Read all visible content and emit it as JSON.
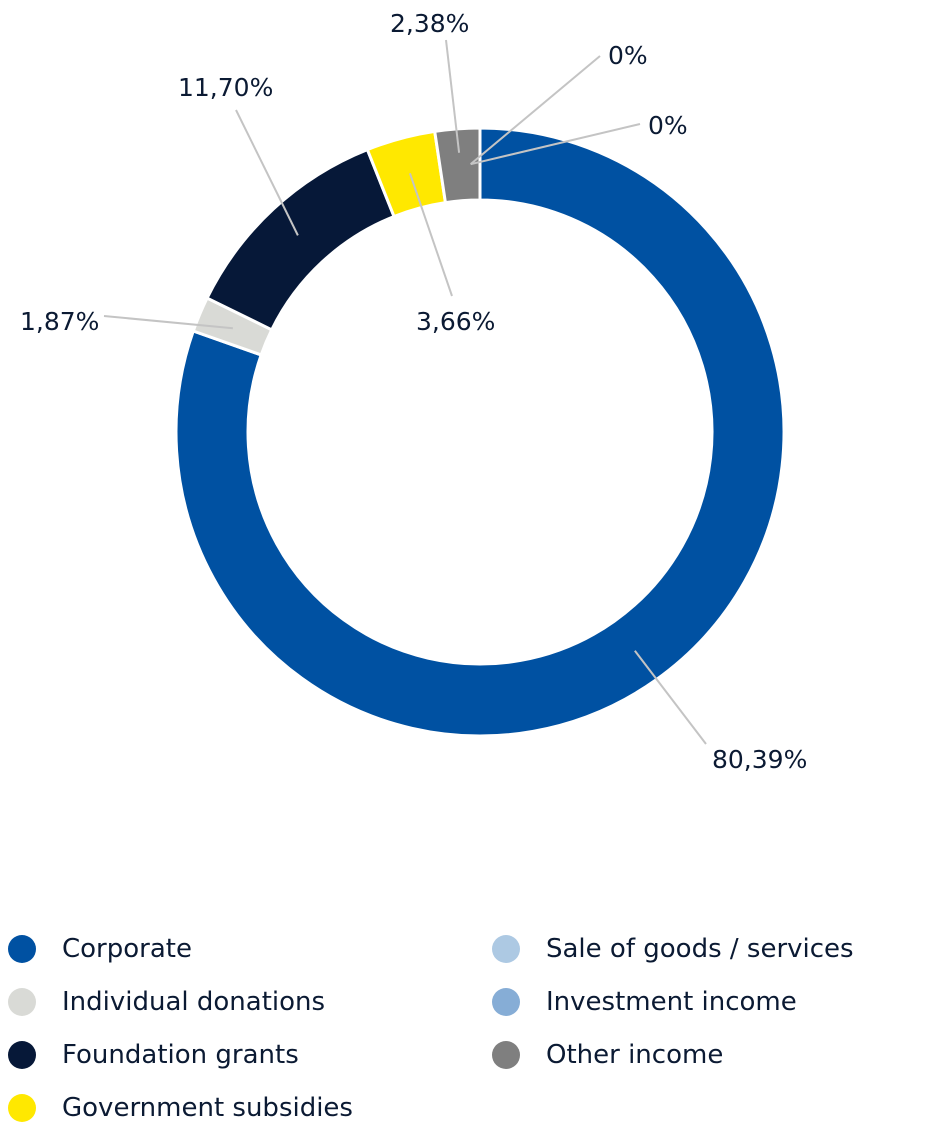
{
  "chart_data": {
    "type": "pie",
    "variant": "donut",
    "title": "",
    "start_angle_deg": 0,
    "direction": "clockwise",
    "legend_position": "bottom",
    "series": [
      {
        "name": "Corporate",
        "value": 80.39,
        "label": "80,39%",
        "color": "#0051a2"
      },
      {
        "name": "Individual donations",
        "value": 1.87,
        "label": "1,87%",
        "color": "#d9dad6"
      },
      {
        "name": "Foundation grants",
        "value": 11.7,
        "label": "11,70%",
        "color": "#061838"
      },
      {
        "name": "Government subsidies",
        "value": 3.66,
        "label": "3,66%",
        "color": "#ffe800"
      },
      {
        "name": "Other income",
        "value": 2.38,
        "label": "2,38%",
        "color": "#7f7f7f"
      },
      {
        "name": "Sale of goods / services",
        "value": 0,
        "label": "0%",
        "color": "#adc9e3"
      },
      {
        "name": "Investment income",
        "value": 0,
        "label": "0%",
        "color": "#86add6"
      }
    ]
  },
  "legend": {
    "column_a": [
      {
        "label": "Corporate",
        "color": "#0051a2"
      },
      {
        "label": "Individual donations",
        "color": "#d9dad6"
      },
      {
        "label": "Foundation grants",
        "color": "#061838"
      },
      {
        "label": "Government subsidies",
        "color": "#ffe800"
      }
    ],
    "column_b": [
      {
        "label": "Sale of goods / services",
        "color": "#adc9e3"
      },
      {
        "label": "Investment income",
        "color": "#86add6"
      },
      {
        "label": "Other income",
        "color": "#7f7f7f"
      }
    ]
  }
}
